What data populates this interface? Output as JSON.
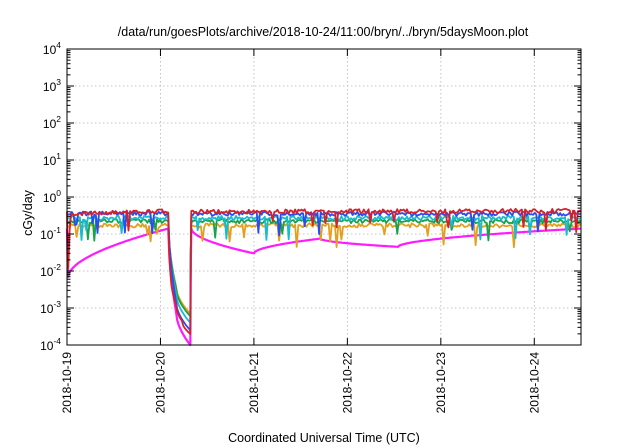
{
  "chart_data": {
    "type": "line",
    "title": "/data/run/goesPlots/archive/2018-10-24/11:00/bryn/../bryn/5daysMoon.plot",
    "xlabel": "Coordinated Universal Time (UTC)",
    "ylabel": "cGy/day",
    "yscale": "log",
    "ylim": [
      0.0001,
      10000
    ],
    "xlim": [
      "2018-10-19 00:00",
      "2018-10-24 12:00"
    ],
    "grid": true,
    "legend": "none",
    "y_ticks": [
      {
        "base": "10",
        "exp": "-4",
        "value": 0.0001
      },
      {
        "base": "10",
        "exp": "-3",
        "value": 0.001
      },
      {
        "base": "10",
        "exp": "-2",
        "value": 0.01
      },
      {
        "base": "10",
        "exp": "-1",
        "value": 0.1
      },
      {
        "base": "10",
        "exp": "0",
        "value": 1
      },
      {
        "base": "10",
        "exp": "1",
        "value": 10
      },
      {
        "base": "10",
        "exp": "2",
        "value": 100
      },
      {
        "base": "10",
        "exp": "3",
        "value": 1000
      },
      {
        "base": "10",
        "exp": "4",
        "value": 10000
      }
    ],
    "x_ticks": [
      {
        "label": "2018-10-19",
        "day": 0
      },
      {
        "label": "2018-10-20",
        "day": 1
      },
      {
        "label": "2018-10-21",
        "day": 2
      },
      {
        "label": "2018-10-22",
        "day": 3
      },
      {
        "label": "2018-10-23",
        "day": 4
      },
      {
        "label": "2018-10-24",
        "day": 5
      }
    ],
    "series": [
      {
        "color": "#d6202a",
        "baseline": 0.4,
        "points": [
          [
            "2018-10-19 00:00",
            0.4
          ],
          [
            "2018-10-19 00:20",
            0.012
          ],
          [
            "2018-10-19 01:00",
            0.35
          ],
          [
            "2018-10-20 00:00",
            0.42
          ],
          [
            "2018-10-20 02:00",
            0.38
          ],
          [
            "2018-10-20 02:30",
            0.01
          ],
          [
            "2018-10-20 04:00",
            0.0012
          ],
          [
            "2018-10-20 05:30",
            0.00045
          ],
          [
            "2018-10-20 07:40",
            0.0002
          ],
          [
            "2018-10-20 07:55",
            0.4
          ],
          [
            "2018-10-24 12:00",
            0.42
          ]
        ]
      },
      {
        "color": "#2a4df0",
        "baseline": 0.35,
        "points": [
          [
            "2018-10-19 00:00",
            0.35
          ],
          [
            "2018-10-20 02:00",
            0.36
          ],
          [
            "2018-10-20 04:00",
            0.0015
          ],
          [
            "2018-10-20 07:40",
            0.00025
          ],
          [
            "2018-10-20 07:55",
            0.35
          ],
          [
            "2018-10-24 12:00",
            0.35
          ]
        ]
      },
      {
        "color": "#1bbbcf",
        "baseline": 0.27,
        "points": [
          [
            "2018-10-19 00:00",
            0.27
          ],
          [
            "2018-10-20 02:00",
            0.27
          ],
          [
            "2018-10-20 04:00",
            0.0025
          ],
          [
            "2018-10-20 07:40",
            0.0004
          ],
          [
            "2018-10-20 07:55",
            0.27
          ],
          [
            "2018-10-24 12:00",
            0.27
          ]
        ]
      },
      {
        "color": "#18a24a",
        "baseline": 0.22,
        "points": [
          [
            "2018-10-19 00:00",
            0.22
          ],
          [
            "2018-10-20 02:00",
            0.22
          ],
          [
            "2018-10-20 04:00",
            0.0035
          ],
          [
            "2018-10-20 07:40",
            0.0006
          ],
          [
            "2018-10-20 07:55",
            0.22
          ],
          [
            "2018-10-24 12:00",
            0.22
          ]
        ]
      },
      {
        "color": "#e3a01e",
        "baseline": 0.17,
        "points": [
          [
            "2018-10-19 00:00",
            0.17
          ],
          [
            "2018-10-20 02:00",
            0.17
          ],
          [
            "2018-10-20 04:00",
            0.004
          ],
          [
            "2018-10-20 07:40",
            0.0007
          ],
          [
            "2018-10-20 07:55",
            0.17
          ],
          [
            "2018-10-24 12:00",
            0.17
          ]
        ]
      },
      {
        "color": "#ff1aff",
        "baseline": 0.14,
        "points": [
          [
            "2018-10-19 00:00",
            0.14
          ],
          [
            "2018-10-19 00:20",
            0.007
          ],
          [
            "2018-10-20 02:00",
            0.14
          ],
          [
            "2018-10-20 04:00",
            0.0008
          ],
          [
            "2018-10-20 07:40",
            0.0001
          ],
          [
            "2018-10-20 07:55",
            0.14
          ],
          [
            "2018-10-21 00:00",
            0.03
          ],
          [
            "2018-10-21 17:00",
            0.075
          ],
          [
            "2018-10-22 13:00",
            0.045
          ],
          [
            "2018-10-24 12:00",
            0.14
          ]
        ]
      }
    ]
  }
}
